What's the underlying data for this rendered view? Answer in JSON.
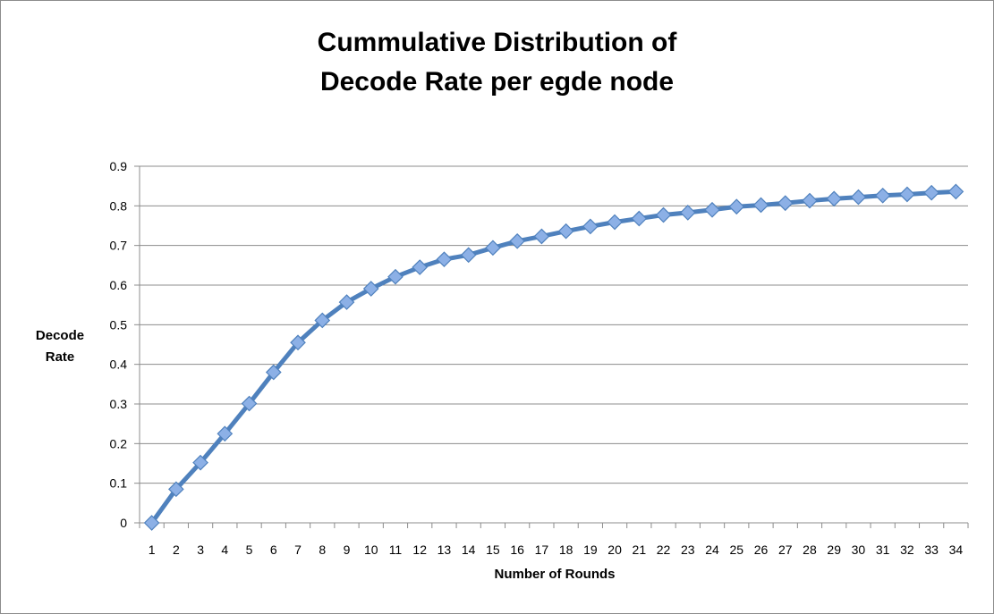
{
  "chart_data": {
    "type": "line",
    "title_lines": [
      "Cummulative Distribution of",
      "Decode Rate per egde node"
    ],
    "xlabel": "Number of Rounds",
    "ylabel_lines": [
      "Decode",
      "Rate"
    ],
    "x": [
      1,
      2,
      3,
      4,
      5,
      6,
      7,
      8,
      9,
      10,
      11,
      12,
      13,
      14,
      15,
      16,
      17,
      18,
      19,
      20,
      21,
      22,
      23,
      24,
      25,
      26,
      27,
      28,
      29,
      30,
      31,
      32,
      33,
      34
    ],
    "series": [
      {
        "values": [
          0,
          0.085,
          0.152,
          0.225,
          0.301,
          0.38,
          0.455,
          0.511,
          0.557,
          0.591,
          0.621,
          0.645,
          0.665,
          0.676,
          0.694,
          0.711,
          0.723,
          0.736,
          0.748,
          0.759,
          0.768,
          0.777,
          0.783,
          0.79,
          0.798,
          0.802,
          0.807,
          0.813,
          0.818,
          0.822,
          0.826,
          0.829,
          0.833,
          0.836
        ],
        "color": "#4f81bd",
        "marker": "diamond",
        "marker_color": "#8cb0e6"
      }
    ],
    "ylim": [
      0,
      0.9
    ],
    "yticks": [
      "0",
      "0.1",
      "0.2",
      "0.3",
      "0.4",
      "0.5",
      "0.6",
      "0.7",
      "0.8",
      "0.9"
    ],
    "grid": true,
    "legend": "none"
  }
}
